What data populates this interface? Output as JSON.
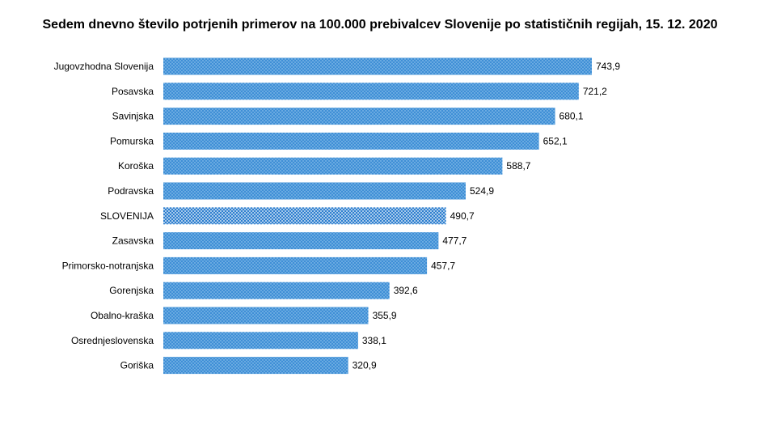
{
  "chart_data": {
    "type": "bar",
    "orientation": "horizontal",
    "title": "Sedem dnevno število potrjenih primerov na 100.000  prebivalcev Slovenije po statističnih regijah, 15. 12. 2020",
    "xlabel": "",
    "ylabel": "",
    "categories": [
      "Jugovzhodna Slovenija",
      "Posavska",
      "Savinjska",
      "Pomurska",
      "Koroška",
      "Podravska",
      "SLOVENIJA",
      "Zasavska",
      "Primorsko-notranjska",
      "Gorenjska",
      "Obalno-kraška",
      "Osrednjeslovenska",
      "Goriška"
    ],
    "values": [
      743.9,
      721.2,
      680.1,
      652.1,
      588.7,
      524.9,
      490.7,
      477.7,
      457.7,
      392.6,
      355.9,
      338.1,
      320.9
    ],
    "value_labels": [
      "743,9",
      "721,2",
      "680,1",
      "652,1",
      "588,7",
      "524,9",
      "490,7",
      "477,7",
      "457,7",
      "392,6",
      "355,9",
      "338,1",
      "320,9"
    ],
    "highlight_category": "SLOVENIJA",
    "xlim": [
      0,
      743.9
    ],
    "grid": false,
    "legend": "none",
    "colors": {
      "bar": "#3f8fd6",
      "bar_dot": "#a9d2f3",
      "highlight_bar": "#2e7fcf",
      "highlight_dot": "#ffffff"
    }
  }
}
